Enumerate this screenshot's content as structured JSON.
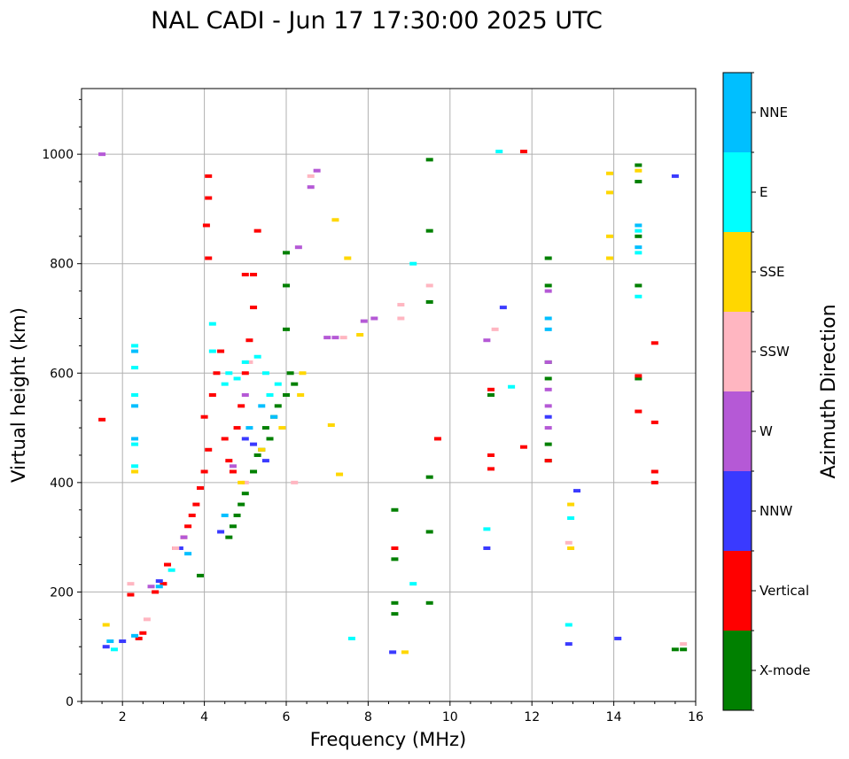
{
  "chart_data": {
    "type": "scatter",
    "title": "NAL CADI - Jun 17 17:30:00 2025 UTC",
    "xlabel": "Frequency (MHz)",
    "ylabel": "Virtual height (km)",
    "xlim": [
      1,
      16
    ],
    "ylim": [
      0,
      1120
    ],
    "xticks": [
      2,
      4,
      6,
      8,
      10,
      12,
      14,
      16
    ],
    "yticks": [
      0,
      200,
      400,
      600,
      800,
      1000
    ],
    "grid": true,
    "colorbar": {
      "title": "Azimuth Direction",
      "categories": [
        {
          "name": "X-mode",
          "color": "#008000"
        },
        {
          "name": "Vertical",
          "color": "#ff0000"
        },
        {
          "name": "NNW",
          "color": "#3a3aff"
        },
        {
          "name": "W",
          "color": "#b559d6"
        },
        {
          "name": "SSW",
          "color": "#ffb6c1"
        },
        {
          "name": "SSE",
          "color": "#ffd700"
        },
        {
          "name": "E",
          "color": "#00ffff"
        },
        {
          "name": "NNE",
          "color": "#00bfff"
        }
      ]
    },
    "series": [
      {
        "name": "X-mode",
        "points": [
          [
            4.6,
            300
          ],
          [
            4.7,
            320
          ],
          [
            4.8,
            340
          ],
          [
            4.9,
            360
          ],
          [
            5.0,
            380
          ],
          [
            5.2,
            420
          ],
          [
            5.4,
            460
          ],
          [
            5.5,
            500
          ],
          [
            5.7,
            520
          ],
          [
            5.8,
            540
          ],
          [
            6.0,
            560
          ],
          [
            6.1,
            600
          ],
          [
            6.0,
            680
          ],
          [
            6.0,
            760
          ],
          [
            6.0,
            820
          ],
          [
            5.6,
            480
          ],
          [
            5.3,
            450
          ],
          [
            6.2,
            580
          ],
          [
            3.9,
            230
          ],
          [
            8.65,
            260
          ],
          [
            8.65,
            350
          ],
          [
            8.65,
            160
          ],
          [
            8.65,
            180
          ],
          [
            9.5,
            180
          ],
          [
            9.5,
            310
          ],
          [
            9.5,
            410
          ],
          [
            9.5,
            730
          ],
          [
            9.5,
            860
          ],
          [
            9.5,
            990
          ],
          [
            11.0,
            560
          ],
          [
            12.4,
            440
          ],
          [
            12.4,
            470
          ],
          [
            12.4,
            590
          ],
          [
            12.4,
            620
          ],
          [
            12.4,
            760
          ],
          [
            12.4,
            810
          ],
          [
            14.6,
            590
          ],
          [
            14.6,
            760
          ],
          [
            14.6,
            850
          ],
          [
            14.6,
            950
          ],
          [
            14.6,
            980
          ],
          [
            15.5,
            95
          ],
          [
            15.7,
            95
          ]
        ]
      },
      {
        "name": "Vertical",
        "points": [
          [
            2.4,
            115
          ],
          [
            2.5,
            125
          ],
          [
            2.8,
            200
          ],
          [
            3.0,
            215
          ],
          [
            3.1,
            250
          ],
          [
            3.3,
            280
          ],
          [
            3.5,
            300
          ],
          [
            3.6,
            320
          ],
          [
            3.7,
            340
          ],
          [
            3.8,
            360
          ],
          [
            3.9,
            390
          ],
          [
            4.0,
            420
          ],
          [
            4.1,
            460
          ],
          [
            4.0,
            520
          ],
          [
            4.2,
            560
          ],
          [
            4.3,
            600
          ],
          [
            4.4,
            640
          ],
          [
            4.5,
            480
          ],
          [
            4.6,
            440
          ],
          [
            4.7,
            420
          ],
          [
            4.8,
            500
          ],
          [
            4.9,
            540
          ],
          [
            5.0,
            600
          ],
          [
            5.1,
            660
          ],
          [
            5.2,
            720
          ],
          [
            5.2,
            780
          ],
          [
            5.3,
            860
          ],
          [
            5.0,
            780
          ],
          [
            4.1,
            920
          ],
          [
            4.1,
            960
          ],
          [
            4.1,
            810
          ],
          [
            4.05,
            870
          ],
          [
            1.5,
            515
          ],
          [
            2.2,
            195
          ],
          [
            8.65,
            280
          ],
          [
            9.7,
            480
          ],
          [
            11.0,
            425
          ],
          [
            11.0,
            450
          ],
          [
            11.0,
            570
          ],
          [
            11.8,
            465
          ],
          [
            11.8,
            1005
          ],
          [
            12.4,
            440
          ],
          [
            14.6,
            530
          ],
          [
            14.6,
            595
          ],
          [
            15.0,
            400
          ],
          [
            15.0,
            420
          ],
          [
            15.0,
            510
          ],
          [
            15.0,
            655
          ]
        ]
      },
      {
        "name": "NNW",
        "points": [
          [
            1.6,
            100
          ],
          [
            2.0,
            110
          ],
          [
            2.9,
            220
          ],
          [
            3.4,
            280
          ],
          [
            4.4,
            310
          ],
          [
            5.0,
            480
          ],
          [
            5.2,
            470
          ],
          [
            5.5,
            440
          ],
          [
            8.6,
            90
          ],
          [
            10.9,
            280
          ],
          [
            11.3,
            720
          ],
          [
            12.4,
            520
          ],
          [
            13.1,
            385
          ],
          [
            12.9,
            105
          ],
          [
            14.1,
            115
          ],
          [
            15.5,
            960
          ]
        ]
      },
      {
        "name": "W",
        "points": [
          [
            1.5,
            1000
          ],
          [
            2.7,
            210
          ],
          [
            3.5,
            300
          ],
          [
            4.7,
            430
          ],
          [
            5.0,
            560
          ],
          [
            6.3,
            830
          ],
          [
            6.75,
            970
          ],
          [
            6.6,
            940
          ],
          [
            7.0,
            665
          ],
          [
            7.2,
            665
          ],
          [
            7.9,
            695
          ],
          [
            8.15,
            700
          ],
          [
            10.9,
            660
          ],
          [
            12.4,
            500
          ],
          [
            12.4,
            540
          ],
          [
            12.4,
            570
          ],
          [
            12.4,
            750
          ],
          [
            12.4,
            620
          ]
        ]
      },
      {
        "name": "SSW",
        "points": [
          [
            2.2,
            215
          ],
          [
            2.6,
            150
          ],
          [
            3.3,
            280
          ],
          [
            5.0,
            400
          ],
          [
            6.2,
            400
          ],
          [
            6.6,
            960
          ],
          [
            7.4,
            665
          ],
          [
            8.8,
            725
          ],
          [
            8.8,
            700
          ],
          [
            9.5,
            760
          ],
          [
            11.1,
            680
          ],
          [
            12.9,
            290
          ],
          [
            15.7,
            105
          ],
          [
            5.1,
            620
          ]
        ]
      },
      {
        "name": "SSE",
        "points": [
          [
            1.6,
            140
          ],
          [
            2.3,
            420
          ],
          [
            4.9,
            400
          ],
          [
            5.4,
            460
          ],
          [
            5.9,
            500
          ],
          [
            6.35,
            560
          ],
          [
            6.4,
            600
          ],
          [
            7.1,
            505
          ],
          [
            7.2,
            880
          ],
          [
            7.3,
            415
          ],
          [
            7.5,
            810
          ],
          [
            7.8,
            670
          ],
          [
            8.9,
            90
          ],
          [
            12.95,
            280
          ],
          [
            12.95,
            360
          ],
          [
            13.9,
            810
          ],
          [
            13.9,
            850
          ],
          [
            13.9,
            930
          ],
          [
            13.9,
            965
          ],
          [
            14.6,
            970
          ]
        ]
      },
      {
        "name": "E",
        "points": [
          [
            1.8,
            95
          ],
          [
            2.3,
            430
          ],
          [
            2.3,
            470
          ],
          [
            2.3,
            560
          ],
          [
            2.3,
            610
          ],
          [
            2.3,
            650
          ],
          [
            3.2,
            240
          ],
          [
            4.2,
            640
          ],
          [
            4.2,
            690
          ],
          [
            4.5,
            580
          ],
          [
            4.6,
            600
          ],
          [
            4.8,
            590
          ],
          [
            5.0,
            620
          ],
          [
            5.3,
            630
          ],
          [
            5.5,
            600
          ],
          [
            5.6,
            560
          ],
          [
            5.8,
            580
          ],
          [
            9.1,
            215
          ],
          [
            9.1,
            800
          ],
          [
            10.9,
            315
          ],
          [
            11.2,
            1005
          ],
          [
            11.5,
            575
          ],
          [
            12.9,
            140
          ],
          [
            12.95,
            335
          ],
          [
            14.6,
            740
          ],
          [
            14.6,
            820
          ],
          [
            14.6,
            860
          ],
          [
            7.6,
            115
          ]
        ]
      },
      {
        "name": "NNE",
        "points": [
          [
            1.7,
            110
          ],
          [
            2.3,
            120
          ],
          [
            2.3,
            480
          ],
          [
            2.3,
            540
          ],
          [
            2.3,
            640
          ],
          [
            2.9,
            210
          ],
          [
            3.6,
            270
          ],
          [
            4.5,
            340
          ],
          [
            5.1,
            500
          ],
          [
            5.4,
            540
          ],
          [
            5.7,
            520
          ],
          [
            12.4,
            680
          ],
          [
            12.4,
            700
          ],
          [
            14.6,
            830
          ],
          [
            14.6,
            870
          ]
        ]
      }
    ]
  }
}
